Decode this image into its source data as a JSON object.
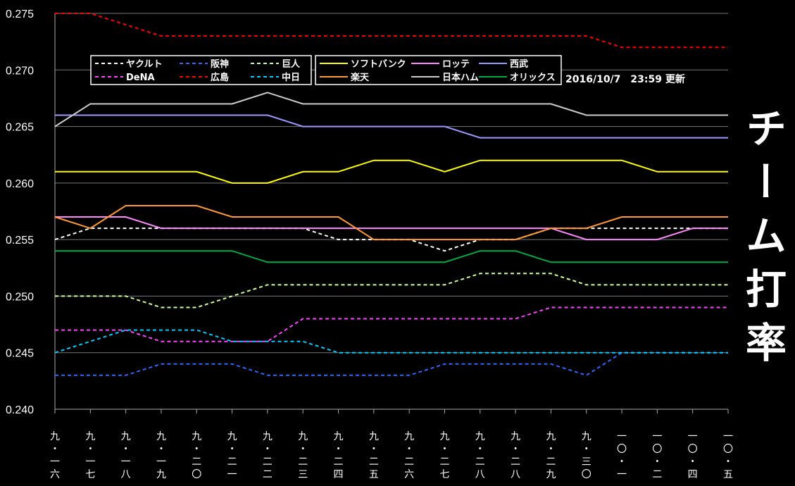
{
  "chart_data": {
    "type": "line",
    "title": "チーム打率",
    "updated": "2016/10/7　23:59 更新",
    "ylim": [
      0.24,
      0.275
    ],
    "yticks": [
      "0.240",
      "0.245",
      "0.250",
      "0.255",
      "0.260",
      "0.265",
      "0.270",
      "0.275"
    ],
    "grid": true,
    "categories": [
      [
        "九",
        "・",
        "一",
        "六"
      ],
      [
        "九",
        "・",
        "一",
        "七"
      ],
      [
        "九",
        "・",
        "一",
        "八"
      ],
      [
        "九",
        "・",
        "一",
        "九"
      ],
      [
        "九",
        "・",
        "二",
        "〇"
      ],
      [
        "九",
        "・",
        "二",
        "一"
      ],
      [
        "九",
        "・",
        "二",
        "二"
      ],
      [
        "九",
        "・",
        "二",
        "三"
      ],
      [
        "九",
        "・",
        "二",
        "四"
      ],
      [
        "九",
        "・",
        "二",
        "五"
      ],
      [
        "九",
        "・",
        "二",
        "六"
      ],
      [
        "九",
        "・",
        "二",
        "七"
      ],
      [
        "九",
        "・",
        "二",
        "八"
      ],
      [
        "九",
        "・",
        "二",
        "八"
      ],
      [
        "九",
        "・",
        "二",
        "九"
      ],
      [
        "九",
        "・",
        "三",
        "〇"
      ],
      [
        "一",
        "〇",
        "・",
        "一"
      ],
      [
        "一",
        "〇",
        "・",
        "二"
      ],
      [
        "一",
        "〇",
        "・",
        "四"
      ],
      [
        "一",
        "〇",
        "・",
        "五"
      ]
    ],
    "series": [
      {
        "name": "ヤクルト",
        "color": "#ffffff",
        "dash": true,
        "values": [
          0.255,
          0.256,
          0.256,
          0.256,
          0.256,
          0.256,
          0.256,
          0.256,
          0.255,
          0.255,
          0.255,
          0.254,
          0.255,
          0.255,
          0.256,
          0.256,
          0.256,
          0.256,
          0.256,
          0.256
        ]
      },
      {
        "name": "阪神",
        "color": "#3366ff",
        "dash": true,
        "values": [
          0.243,
          0.243,
          0.243,
          0.244,
          0.244,
          0.244,
          0.243,
          0.243,
          0.243,
          0.243,
          0.243,
          0.244,
          0.244,
          0.244,
          0.244,
          0.243,
          0.245,
          0.245,
          0.245,
          0.245
        ]
      },
      {
        "name": "巨人",
        "color": "#ccff99",
        "dash": true,
        "values": [
          0.25,
          0.25,
          0.25,
          0.249,
          0.249,
          0.25,
          0.251,
          0.251,
          0.251,
          0.251,
          0.251,
          0.251,
          0.252,
          0.252,
          0.252,
          0.251,
          0.251,
          0.251,
          0.251,
          0.251
        ]
      },
      {
        "name": "DeNA",
        "color": "#ff44ff",
        "dash": true,
        "values": [
          0.247,
          0.247,
          0.247,
          0.246,
          0.246,
          0.246,
          0.246,
          0.248,
          0.248,
          0.248,
          0.248,
          0.248,
          0.248,
          0.248,
          0.249,
          0.249,
          0.249,
          0.249,
          0.249,
          0.249
        ]
      },
      {
        "name": "広島",
        "color": "#ff0000",
        "dash": true,
        "values": [
          0.275,
          0.275,
          0.274,
          0.273,
          0.273,
          0.273,
          0.273,
          0.273,
          0.273,
          0.273,
          0.273,
          0.273,
          0.273,
          0.273,
          0.273,
          0.273,
          0.272,
          0.272,
          0.272,
          0.272
        ]
      },
      {
        "name": "中日",
        "color": "#00ccff",
        "dash": true,
        "values": [
          0.245,
          0.246,
          0.247,
          0.247,
          0.247,
          0.246,
          0.246,
          0.246,
          0.245,
          0.245,
          0.245,
          0.245,
          0.245,
          0.245,
          0.245,
          0.245,
          0.245,
          0.245,
          0.245,
          0.245
        ]
      },
      {
        "name": "ソフトバンク",
        "color": "#ffff00",
        "dash": false,
        "values": [
          0.261,
          0.261,
          0.261,
          0.261,
          0.261,
          0.26,
          0.26,
          0.261,
          0.261,
          0.262,
          0.262,
          0.261,
          0.262,
          0.262,
          0.262,
          0.262,
          0.262,
          0.261,
          0.261,
          0.261
        ]
      },
      {
        "name": "ロッテ",
        "color": "#ff88ff",
        "dash": false,
        "values": [
          0.257,
          0.257,
          0.257,
          0.256,
          0.256,
          0.256,
          0.256,
          0.256,
          0.256,
          0.256,
          0.256,
          0.256,
          0.256,
          0.256,
          0.256,
          0.255,
          0.255,
          0.255,
          0.256,
          0.256
        ]
      },
      {
        "name": "西武",
        "color": "#9999ff",
        "dash": false,
        "values": [
          0.266,
          0.266,
          0.266,
          0.266,
          0.266,
          0.266,
          0.266,
          0.265,
          0.265,
          0.265,
          0.265,
          0.265,
          0.264,
          0.264,
          0.264,
          0.264,
          0.264,
          0.264,
          0.264,
          0.264
        ]
      },
      {
        "name": "楽天",
        "color": "#ff9933",
        "dash": false,
        "values": [
          0.257,
          0.256,
          0.258,
          0.258,
          0.258,
          0.257,
          0.257,
          0.257,
          0.257,
          0.255,
          0.255,
          0.255,
          0.255,
          0.255,
          0.256,
          0.256,
          0.257,
          0.257,
          0.257,
          0.257
        ]
      },
      {
        "name": "日本ハム",
        "color": "#cccccc",
        "dash": false,
        "values": [
          0.265,
          0.267,
          0.267,
          0.267,
          0.267,
          0.267,
          0.268,
          0.267,
          0.267,
          0.267,
          0.267,
          0.267,
          0.267,
          0.267,
          0.267,
          0.266,
          0.266,
          0.266,
          0.266,
          0.266
        ]
      },
      {
        "name": "オリックス",
        "color": "#00aa44",
        "dash": false,
        "values": [
          0.254,
          0.254,
          0.254,
          0.254,
          0.254,
          0.254,
          0.253,
          0.253,
          0.253,
          0.253,
          0.253,
          0.253,
          0.254,
          0.254,
          0.253,
          0.253,
          0.253,
          0.253,
          0.253,
          0.253
        ]
      }
    ]
  }
}
